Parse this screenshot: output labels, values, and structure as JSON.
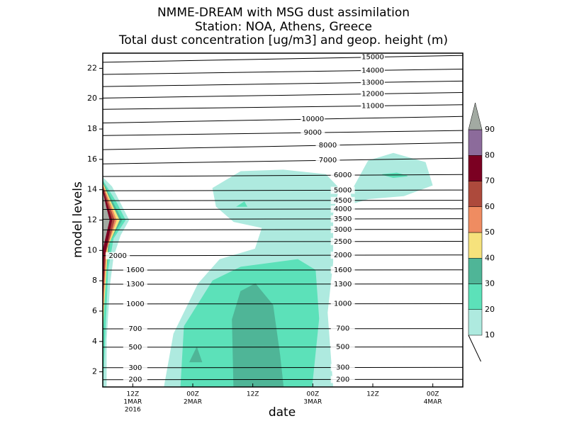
{
  "chart_data": {
    "type": "contour",
    "title": [
      "NMME-DREAM with MSG dust assimilation",
      "Station: NOA, Athens, Greece",
      "Total dust concentration [ug/m3] and geop. height (m)"
    ],
    "xlabel": "date",
    "ylabel": "model levels",
    "xlim": [
      6,
      78
    ],
    "ylim": [
      1,
      23
    ],
    "xticks": [
      {
        "value": 12,
        "label": [
          "12Z",
          "1MAR",
          "2016"
        ]
      },
      {
        "value": 24,
        "label": [
          "00Z",
          "2MAR"
        ]
      },
      {
        "value": 36,
        "label": [
          "12Z"
        ]
      },
      {
        "value": 48,
        "label": [
          "00Z",
          "3MAR"
        ]
      },
      {
        "value": 60,
        "label": [
          "12Z"
        ]
      },
      {
        "value": 72,
        "label": [
          "00Z",
          "4MAR"
        ]
      }
    ],
    "yticks": [
      2,
      4,
      6,
      8,
      10,
      12,
      14,
      16,
      18,
      20,
      22
    ],
    "colorbar": {
      "levels": [
        10,
        20,
        30,
        40,
        50,
        60,
        70,
        80,
        90
      ],
      "colors": [
        "#aeeadf",
        "#5ce1b9",
        "#4fb597",
        "#f6e27c",
        "#ef8c61",
        "#ad4a3c",
        "#7b0022",
        "#8c6b9b",
        "#a2aaa2"
      ]
    },
    "fields": [
      {
        "min": 10,
        "points": [
          [
            28.0,
            14.1
          ],
          [
            33.6,
            15.2
          ],
          [
            42.1,
            15.3
          ],
          [
            50.6,
            15.0
          ],
          [
            53.2,
            14.1
          ],
          [
            52.0,
            12.4
          ],
          [
            52.0,
            9.2
          ],
          [
            50.9,
            5.9
          ],
          [
            52.0,
            1.0
          ],
          [
            18.3,
            1.0
          ],
          [
            20.2,
            4.5
          ],
          [
            25.1,
            7.8
          ],
          [
            29.4,
            9.4
          ],
          [
            36.5,
            10.1
          ],
          [
            37.9,
            11.5
          ],
          [
            32.2,
            11.9
          ],
          [
            28.7,
            12.9
          ]
        ]
      },
      {
        "min": 20,
        "points": [
          [
            21.6,
            1.0
          ],
          [
            22.3,
            5.0
          ],
          [
            28.0,
            8.0
          ],
          [
            33.6,
            8.9
          ],
          [
            45.0,
            9.4
          ],
          [
            48.5,
            8.7
          ],
          [
            49.2,
            5.5
          ],
          [
            47.8,
            1.0
          ]
        ]
      },
      {
        "min": 30,
        "points": [
          [
            32.2,
            1.0
          ],
          [
            31.9,
            5.45
          ],
          [
            33.6,
            7.3
          ],
          [
            36.5,
            7.8
          ],
          [
            40.0,
            6.4
          ],
          [
            41.4,
            3.1
          ],
          [
            42.1,
            1.0
          ]
        ]
      },
      {
        "min": 30,
        "points": [
          [
            23.4,
            2.65
          ],
          [
            24.8,
            3.6
          ],
          [
            25.8,
            2.65
          ]
        ]
      },
      {
        "min": 10,
        "points": [
          [
            55.6,
            13.8
          ],
          [
            59.1,
            15.9
          ],
          [
            64.1,
            16.4
          ],
          [
            70.5,
            15.8
          ],
          [
            71.9,
            14.3
          ],
          [
            66.2,
            13.6
          ],
          [
            59.1,
            13.4
          ],
          [
            56.0,
            13.1
          ]
        ]
      },
      {
        "min": 20,
        "points": [
          [
            61.9,
            15.0
          ],
          [
            64.8,
            15.1
          ],
          [
            66.9,
            14.9
          ],
          [
            64.1,
            14.8
          ]
        ]
      },
      {
        "min": 20,
        "points": [
          [
            32.9,
            12.9
          ],
          [
            34.3,
            13.2
          ],
          [
            34.8,
            12.9
          ]
        ]
      },
      {
        "min": 10,
        "points": [
          [
            6,
            14.8
          ],
          [
            7.8,
            14.2
          ],
          [
            9.5,
            13.1
          ],
          [
            11.2,
            12.0
          ],
          [
            9.5,
            11.0
          ],
          [
            8.1,
            9.6
          ],
          [
            7.4,
            7.8
          ],
          [
            6.7,
            4.1
          ],
          [
            6.7,
            1.0
          ],
          [
            6,
            1.0
          ]
        ]
      },
      {
        "min": 20,
        "points": [
          [
            6,
            14.6
          ],
          [
            8.8,
            13.1
          ],
          [
            10.5,
            12.0
          ],
          [
            8.1,
            10.8
          ],
          [
            7.0,
            8.7
          ],
          [
            6.4,
            4.1
          ],
          [
            6,
            1.0
          ]
        ]
      },
      {
        "min": 30,
        "points": [
          [
            6,
            14.5
          ],
          [
            8.1,
            13.1
          ],
          [
            9.8,
            12.0
          ],
          [
            7.4,
            10.6
          ],
          [
            6.4,
            7.8
          ],
          [
            6,
            5.4
          ]
        ]
      },
      {
        "min": 40,
        "points": [
          [
            6,
            14.4
          ],
          [
            7.7,
            13.1
          ],
          [
            9.3,
            12.0
          ],
          [
            7.0,
            10.3
          ],
          [
            6.3,
            6.8
          ],
          [
            6,
            5.0
          ]
        ]
      },
      {
        "min": 50,
        "points": [
          [
            6,
            14.3
          ],
          [
            7.4,
            13.1
          ],
          [
            8.7,
            12.0
          ],
          [
            6.7,
            10.1
          ],
          [
            6.1,
            6.4
          ],
          [
            6,
            5.9
          ]
        ]
      },
      {
        "min": 60,
        "points": [
          [
            6,
            14.2
          ],
          [
            7.1,
            13.1
          ],
          [
            8.3,
            12.0
          ],
          [
            6.6,
            9.9
          ],
          [
            6,
            6.8
          ]
        ]
      },
      {
        "min": 70,
        "points": [
          [
            6,
            14.1
          ],
          [
            6.8,
            13.1
          ],
          [
            7.8,
            12.0
          ],
          [
            6.3,
            9.6
          ],
          [
            6,
            7.1
          ]
        ]
      },
      {
        "min": 90,
        "points": [
          [
            6,
            13.8
          ],
          [
            6.6,
            12.9
          ],
          [
            7.3,
            12.0
          ],
          [
            6.1,
            10.3
          ],
          [
            6,
            10.1
          ]
        ]
      }
    ],
    "heights": {
      "levels": [
        15000,
        14000,
        13000,
        12000,
        11000,
        10000,
        9000,
        8000,
        7000,
        6000,
        5000,
        4500,
        4000,
        3500,
        3000,
        2500,
        2000,
        1600,
        1300,
        1000,
        700,
        500,
        300,
        200
      ],
      "y_left": [
        22.4,
        21.6,
        20.8,
        20.04,
        19.3,
        18.4,
        17.57,
        16.64,
        15.7,
        14.87,
        13.93,
        13.28,
        12.7,
        12.05,
        11.35,
        10.56,
        9.65,
        8.7,
        7.77,
        6.47,
        4.83,
        3.62,
        2.27,
        1.48
      ],
      "y_right": [
        22.85,
        21.95,
        21.16,
        20.41,
        19.6,
        18.83,
        17.9,
        17.1,
        16.08,
        15.0,
        13.98,
        13.3,
        12.74,
        12.09,
        11.39,
        10.6,
        9.7,
        8.72,
        7.79,
        6.49,
        4.85,
        3.64,
        2.29,
        1.5
      ]
    }
  }
}
